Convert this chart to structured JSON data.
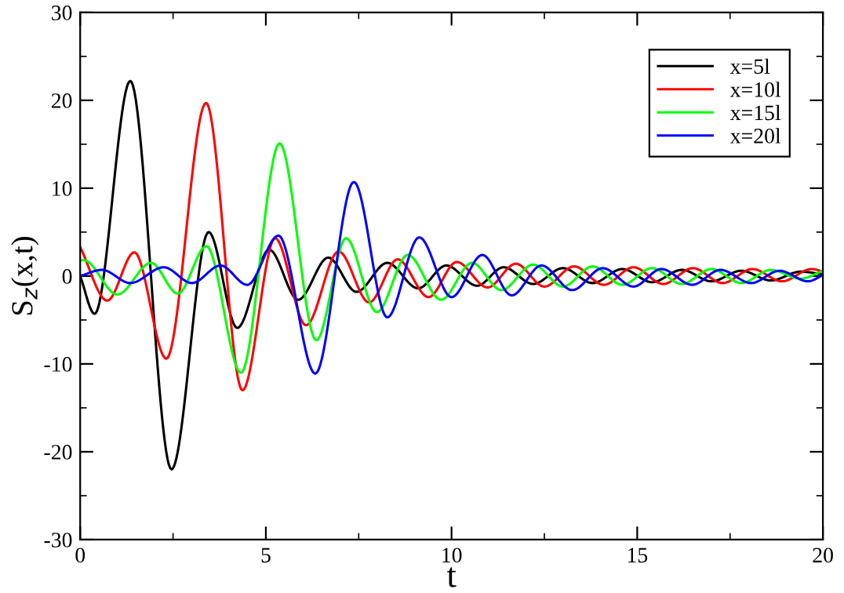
{
  "chart_data": {
    "type": "line",
    "xlabel": "t",
    "ylabel": "S$_{z}$(x,t)",
    "xlim": [
      0,
      20
    ],
    "ylim": [
      -30,
      30
    ],
    "xticks": [
      0,
      5,
      10,
      15,
      20
    ],
    "yticks": [
      -30,
      -20,
      -10,
      0,
      10,
      20,
      30
    ],
    "grid": false,
    "legend": "top right",
    "line_style": "solid",
    "marker": "none",
    "series": [
      {
        "name": "x=5l",
        "color": "#000000",
        "x": [
          0,
          0.39,
          1.35,
          2.46,
          3.46,
          4.23,
          5.09,
          5.87,
          6.68,
          7.44,
          8.27,
          9.1,
          9.86,
          10.69,
          11.4,
          12.2,
          13.0,
          13.8,
          14.6,
          15.4,
          16.2,
          17.0,
          17.8,
          18.6,
          19.4,
          20
        ],
        "values": [
          0,
          -4.3,
          22.2,
          -22.0,
          5.0,
          -5.9,
          3.0,
          -2.7,
          2.1,
          -1.8,
          1.5,
          -1.4,
          1.2,
          -1.1,
          1.0,
          -0.9,
          0.9,
          -0.8,
          0.8,
          -0.7,
          0.7,
          -0.6,
          0.6,
          -0.5,
          0.5,
          0.2
        ]
      },
      {
        "name": "x=10l",
        "color": "#ff0000",
        "x": [
          0,
          0.73,
          1.46,
          2.32,
          3.39,
          4.37,
          5.25,
          6.08,
          6.96,
          7.78,
          8.55,
          9.38,
          10.14,
          10.97,
          11.73,
          12.5,
          13.3,
          14.1,
          14.9,
          15.7,
          16.5,
          17.3,
          18.1,
          18.9,
          19.7,
          20
        ],
        "values": [
          3.3,
          -2.8,
          2.7,
          -9.4,
          19.7,
          -13.0,
          4.3,
          -5.6,
          2.8,
          -3.0,
          1.9,
          -2.4,
          1.6,
          -1.3,
          1.4,
          -1.2,
          1.1,
          -1.0,
          1.0,
          -0.9,
          0.9,
          -0.8,
          0.8,
          -0.6,
          0.8,
          0.5
        ]
      },
      {
        "name": "x=15l",
        "color": "#00ff00",
        "x": [
          0,
          0.1,
          1.0,
          1.91,
          2.63,
          3.4,
          4.33,
          5.37,
          6.36,
          7.16,
          7.99,
          8.82,
          9.72,
          10.55,
          11.34,
          12.2,
          13.0,
          13.8,
          14.6,
          15.4,
          16.2,
          17.0,
          17.8,
          18.6,
          19.4,
          20
        ],
        "values": [
          1.8,
          1.8,
          -2.1,
          1.5,
          -2.0,
          3.4,
          -11.0,
          15.1,
          -7.3,
          4.3,
          -4.1,
          2.4,
          -2.7,
          1.5,
          -1.6,
          1.3,
          -1.2,
          1.1,
          -1.0,
          0.9,
          -0.9,
          0.8,
          -0.8,
          0.7,
          -0.3,
          0.6
        ]
      },
      {
        "name": "x=20l",
        "color": "#0000ff",
        "x": [
          0,
          0.59,
          1.35,
          2.25,
          3.01,
          3.78,
          4.5,
          5.34,
          6.33,
          7.37,
          8.27,
          9.13,
          10.0,
          10.83,
          11.62,
          12.42,
          13.25,
          14.07,
          14.9,
          15.65,
          16.48,
          17.24,
          18.07,
          18.83,
          19.6,
          20
        ],
        "values": [
          0,
          0.7,
          -0.8,
          1.0,
          -0.8,
          1.2,
          -1.0,
          4.6,
          -11.1,
          10.7,
          -4.7,
          4.4,
          -2.4,
          2.4,
          -2.2,
          1.2,
          -1.6,
          0.9,
          -1.2,
          0.8,
          -1.0,
          0.7,
          -0.8,
          0.6,
          -0.6,
          0.1
        ]
      }
    ]
  }
}
